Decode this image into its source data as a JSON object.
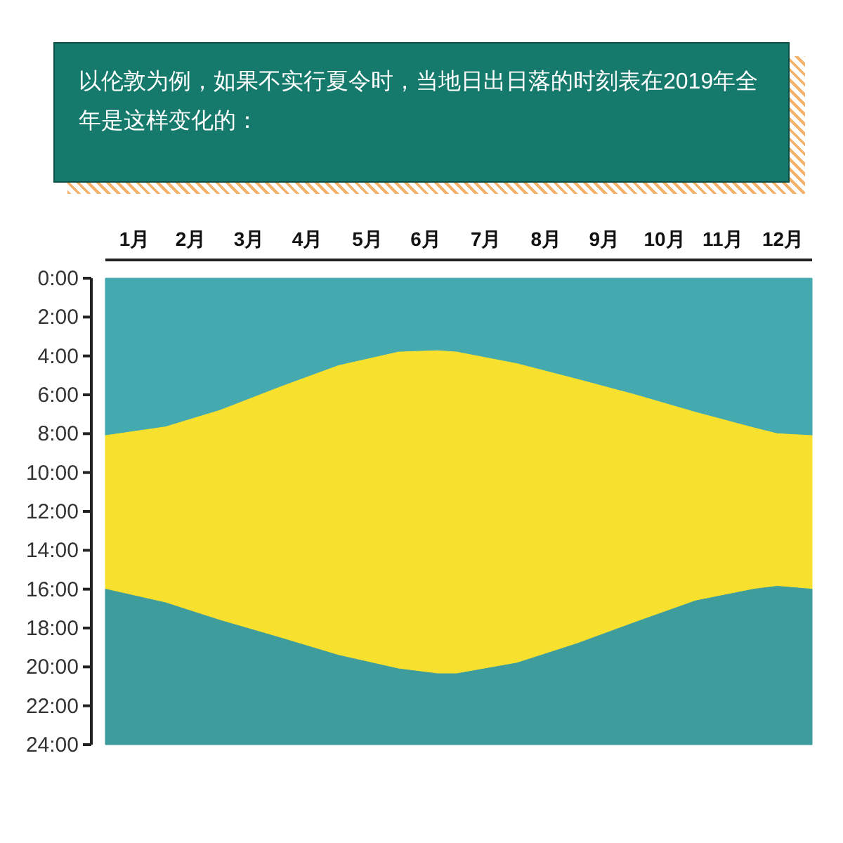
{
  "chart_data": {
    "type": "area",
    "title": "以伦敦为例，如果不实行夏令时，当地日出日落的时刻表在2019年全年是这样变化的：",
    "stacked": true,
    "x": [
      "2019-01-01",
      "2019-02-01",
      "2019-03-01",
      "2019-04-01",
      "2019-05-01",
      "2019-06-01",
      "2019-06-21",
      "2019-07-01",
      "2019-08-01",
      "2019-09-01",
      "2019-10-01",
      "2019-11-01",
      "2019-12-01",
      "2019-12-13",
      "2019-12-31"
    ],
    "xlim": [
      "2019-01-01",
      "2019-12-31"
    ],
    "xticks": [
      {
        "value": "2019-01-16",
        "label": "1月"
      },
      {
        "value": "2019-02-14",
        "label": "2月"
      },
      {
        "value": "2019-03-16",
        "label": "3月"
      },
      {
        "value": "2019-04-15",
        "label": "4月"
      },
      {
        "value": "2019-05-16",
        "label": "5月"
      },
      {
        "value": "2019-06-15",
        "label": "6月"
      },
      {
        "value": "2019-07-16",
        "label": "7月"
      },
      {
        "value": "2019-08-16",
        "label": "8月"
      },
      {
        "value": "2019-09-15",
        "label": "9月"
      },
      {
        "value": "2019-10-16",
        "label": "10月"
      },
      {
        "value": "2019-11-15",
        "label": "11月"
      },
      {
        "value": "2019-12-16",
        "label": "12月"
      }
    ],
    "ylim": [
      24,
      0
    ],
    "yticks": [
      {
        "value": 0,
        "label": "0:00"
      },
      {
        "value": 2,
        "label": "2:00"
      },
      {
        "value": 4,
        "label": "4:00"
      },
      {
        "value": 6,
        "label": "6:00"
      },
      {
        "value": 8,
        "label": "8:00"
      },
      {
        "value": 10,
        "label": "10:00"
      },
      {
        "value": 12,
        "label": "12:00"
      },
      {
        "value": 14,
        "label": "14:00"
      },
      {
        "value": 16,
        "label": "16:00"
      },
      {
        "value": 18,
        "label": "18:00"
      },
      {
        "value": 20,
        "label": "20:00"
      },
      {
        "value": 22,
        "label": "22:00"
      },
      {
        "value": 24,
        "label": "24:00"
      }
    ],
    "series": [
      {
        "color": "#45a9b0",
        "values": [
          8.1,
          7.65,
          6.8,
          5.6,
          4.5,
          3.8,
          3.73,
          3.8,
          4.4,
          5.2,
          6.0,
          6.9,
          7.7,
          8.0,
          8.1
        ]
      },
      {
        "color": "#f8e12e",
        "values": [
          7.9,
          9.05,
          10.8,
          12.9,
          14.9,
          16.3,
          16.62,
          16.55,
          15.4,
          13.6,
          11.7,
          9.7,
          8.3,
          7.85,
          7.9
        ]
      },
      {
        "color": "#3f9c9c",
        "values": [
          8.0,
          7.3,
          6.4,
          5.5,
          4.6,
          3.9,
          3.65,
          3.65,
          4.2,
          5.2,
          6.3,
          7.4,
          8.0,
          8.15,
          8.0
        ]
      }
    ]
  }
}
